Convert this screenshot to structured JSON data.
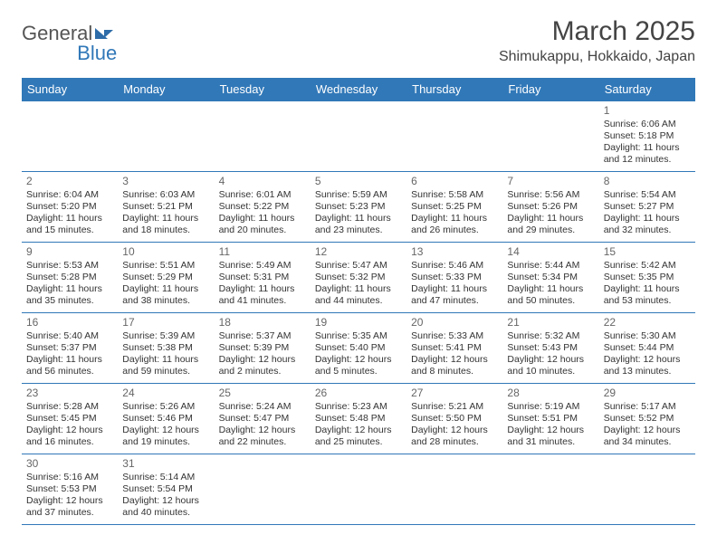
{
  "brand": {
    "part1": "General",
    "part2": "Blue"
  },
  "title": "March 2025",
  "location": "Shimukappu, Hokkaido, Japan",
  "colors": {
    "header_bg": "#3178b8",
    "header_fg": "#ffffff",
    "border": "#3178b8",
    "text": "#333333"
  },
  "weekdays": [
    "Sunday",
    "Monday",
    "Tuesday",
    "Wednesday",
    "Thursday",
    "Friday",
    "Saturday"
  ],
  "grid": [
    [
      null,
      null,
      null,
      null,
      null,
      null,
      {
        "n": "1",
        "sr": "Sunrise: 6:06 AM",
        "ss": "Sunset: 5:18 PM",
        "d1": "Daylight: 11 hours",
        "d2": "and 12 minutes."
      }
    ],
    [
      {
        "n": "2",
        "sr": "Sunrise: 6:04 AM",
        "ss": "Sunset: 5:20 PM",
        "d1": "Daylight: 11 hours",
        "d2": "and 15 minutes."
      },
      {
        "n": "3",
        "sr": "Sunrise: 6:03 AM",
        "ss": "Sunset: 5:21 PM",
        "d1": "Daylight: 11 hours",
        "d2": "and 18 minutes."
      },
      {
        "n": "4",
        "sr": "Sunrise: 6:01 AM",
        "ss": "Sunset: 5:22 PM",
        "d1": "Daylight: 11 hours",
        "d2": "and 20 minutes."
      },
      {
        "n": "5",
        "sr": "Sunrise: 5:59 AM",
        "ss": "Sunset: 5:23 PM",
        "d1": "Daylight: 11 hours",
        "d2": "and 23 minutes."
      },
      {
        "n": "6",
        "sr": "Sunrise: 5:58 AM",
        "ss": "Sunset: 5:25 PM",
        "d1": "Daylight: 11 hours",
        "d2": "and 26 minutes."
      },
      {
        "n": "7",
        "sr": "Sunrise: 5:56 AM",
        "ss": "Sunset: 5:26 PM",
        "d1": "Daylight: 11 hours",
        "d2": "and 29 minutes."
      },
      {
        "n": "8",
        "sr": "Sunrise: 5:54 AM",
        "ss": "Sunset: 5:27 PM",
        "d1": "Daylight: 11 hours",
        "d2": "and 32 minutes."
      }
    ],
    [
      {
        "n": "9",
        "sr": "Sunrise: 5:53 AM",
        "ss": "Sunset: 5:28 PM",
        "d1": "Daylight: 11 hours",
        "d2": "and 35 minutes."
      },
      {
        "n": "10",
        "sr": "Sunrise: 5:51 AM",
        "ss": "Sunset: 5:29 PM",
        "d1": "Daylight: 11 hours",
        "d2": "and 38 minutes."
      },
      {
        "n": "11",
        "sr": "Sunrise: 5:49 AM",
        "ss": "Sunset: 5:31 PM",
        "d1": "Daylight: 11 hours",
        "d2": "and 41 minutes."
      },
      {
        "n": "12",
        "sr": "Sunrise: 5:47 AM",
        "ss": "Sunset: 5:32 PM",
        "d1": "Daylight: 11 hours",
        "d2": "and 44 minutes."
      },
      {
        "n": "13",
        "sr": "Sunrise: 5:46 AM",
        "ss": "Sunset: 5:33 PM",
        "d1": "Daylight: 11 hours",
        "d2": "and 47 minutes."
      },
      {
        "n": "14",
        "sr": "Sunrise: 5:44 AM",
        "ss": "Sunset: 5:34 PM",
        "d1": "Daylight: 11 hours",
        "d2": "and 50 minutes."
      },
      {
        "n": "15",
        "sr": "Sunrise: 5:42 AM",
        "ss": "Sunset: 5:35 PM",
        "d1": "Daylight: 11 hours",
        "d2": "and 53 minutes."
      }
    ],
    [
      {
        "n": "16",
        "sr": "Sunrise: 5:40 AM",
        "ss": "Sunset: 5:37 PM",
        "d1": "Daylight: 11 hours",
        "d2": "and 56 minutes."
      },
      {
        "n": "17",
        "sr": "Sunrise: 5:39 AM",
        "ss": "Sunset: 5:38 PM",
        "d1": "Daylight: 11 hours",
        "d2": "and 59 minutes."
      },
      {
        "n": "18",
        "sr": "Sunrise: 5:37 AM",
        "ss": "Sunset: 5:39 PM",
        "d1": "Daylight: 12 hours",
        "d2": "and 2 minutes."
      },
      {
        "n": "19",
        "sr": "Sunrise: 5:35 AM",
        "ss": "Sunset: 5:40 PM",
        "d1": "Daylight: 12 hours",
        "d2": "and 5 minutes."
      },
      {
        "n": "20",
        "sr": "Sunrise: 5:33 AM",
        "ss": "Sunset: 5:41 PM",
        "d1": "Daylight: 12 hours",
        "d2": "and 8 minutes."
      },
      {
        "n": "21",
        "sr": "Sunrise: 5:32 AM",
        "ss": "Sunset: 5:43 PM",
        "d1": "Daylight: 12 hours",
        "d2": "and 10 minutes."
      },
      {
        "n": "22",
        "sr": "Sunrise: 5:30 AM",
        "ss": "Sunset: 5:44 PM",
        "d1": "Daylight: 12 hours",
        "d2": "and 13 minutes."
      }
    ],
    [
      {
        "n": "23",
        "sr": "Sunrise: 5:28 AM",
        "ss": "Sunset: 5:45 PM",
        "d1": "Daylight: 12 hours",
        "d2": "and 16 minutes."
      },
      {
        "n": "24",
        "sr": "Sunrise: 5:26 AM",
        "ss": "Sunset: 5:46 PM",
        "d1": "Daylight: 12 hours",
        "d2": "and 19 minutes."
      },
      {
        "n": "25",
        "sr": "Sunrise: 5:24 AM",
        "ss": "Sunset: 5:47 PM",
        "d1": "Daylight: 12 hours",
        "d2": "and 22 minutes."
      },
      {
        "n": "26",
        "sr": "Sunrise: 5:23 AM",
        "ss": "Sunset: 5:48 PM",
        "d1": "Daylight: 12 hours",
        "d2": "and 25 minutes."
      },
      {
        "n": "27",
        "sr": "Sunrise: 5:21 AM",
        "ss": "Sunset: 5:50 PM",
        "d1": "Daylight: 12 hours",
        "d2": "and 28 minutes."
      },
      {
        "n": "28",
        "sr": "Sunrise: 5:19 AM",
        "ss": "Sunset: 5:51 PM",
        "d1": "Daylight: 12 hours",
        "d2": "and 31 minutes."
      },
      {
        "n": "29",
        "sr": "Sunrise: 5:17 AM",
        "ss": "Sunset: 5:52 PM",
        "d1": "Daylight: 12 hours",
        "d2": "and 34 minutes."
      }
    ],
    [
      {
        "n": "30",
        "sr": "Sunrise: 5:16 AM",
        "ss": "Sunset: 5:53 PM",
        "d1": "Daylight: 12 hours",
        "d2": "and 37 minutes."
      },
      {
        "n": "31",
        "sr": "Sunrise: 5:14 AM",
        "ss": "Sunset: 5:54 PM",
        "d1": "Daylight: 12 hours",
        "d2": "and 40 minutes."
      },
      null,
      null,
      null,
      null,
      null
    ]
  ]
}
